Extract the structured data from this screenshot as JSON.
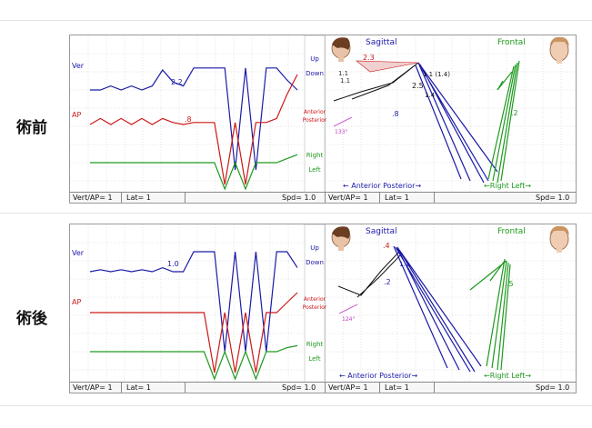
{
  "labels": {
    "before": "術前",
    "after": "術後"
  },
  "colors": {
    "vertical": "#1a1aa8",
    "ap": "#cc1818",
    "lateral": "#1e9a1e",
    "magenta": "#c040c0",
    "grid": "#c8c8c8"
  },
  "panels": [
    {
      "id": "before",
      "trace_labels": {
        "vertical": "Ver",
        "ap": "AP",
        "lateral": "Lat"
      },
      "direction_labels": {
        "up": "Up",
        "down": "Down",
        "anterior": "Anterior",
        "posterior": "Posterior",
        "right": "Right",
        "left": "Left"
      },
      "marker_values": {
        "vertical": "2.2",
        "ap": ".8"
      },
      "sagittal": {
        "title": "Sagittal",
        "axis_label": "← Anterior  Posterior→",
        "values": [
          "2.3",
          "1.1",
          "1.1 (1.4)",
          "2.5",
          "1.4",
          ".8",
          "1.1"
        ],
        "angle": "133°"
      },
      "frontal": {
        "title": "Frontal",
        "axis_label": "←Right   Left→",
        "values": [
          ".2"
        ]
      },
      "status": {
        "vert_ap": "Vert/AP= 1",
        "lat": "Lat= 1",
        "spd_left": "Spd= 1.0",
        "vert_ap_right": "Vert/AP= 1",
        "lat_right": "Lat= 1",
        "spd_right": "Spd= 1.0"
      },
      "icons": [
        "head-side-icon",
        "head-front-icon"
      ]
    },
    {
      "id": "after",
      "trace_labels": {
        "vertical": "Ver",
        "ap": "AP",
        "lateral": "Lat"
      },
      "direction_labels": {
        "up": "Up",
        "down": "Down",
        "anterior": "Anterior",
        "posterior": "Posterior",
        "right": "Right",
        "left": "Left"
      },
      "marker_values": {
        "vertical": "1.0"
      },
      "sagittal": {
        "title": "Sagittal",
        "axis_label": "← Anterior  Posterior→",
        "values": [
          ".4",
          "1.1",
          ".2"
        ],
        "angle": "124°"
      },
      "frontal": {
        "title": "Frontal",
        "axis_label": "←Right   Left→",
        "values": [
          ".5"
        ]
      },
      "status": {
        "vert_ap": "Vert/AP= 1",
        "lat": "Lat= 1",
        "spd_left": "Spd= 1.0",
        "vert_ap_right": "Vert/AP= 1",
        "lat_right": "Lat= 1",
        "spd_right": "Spd= 1.0"
      },
      "icons": [
        "head-side-icon",
        "head-front-icon"
      ]
    }
  ],
  "chart_data": [
    {
      "type": "line",
      "panel": "before",
      "series": [
        {
          "name": "Ver",
          "values": [
            0.0,
            0.0,
            0.2,
            0.0,
            0.2,
            0.0,
            0.2,
            1.0,
            0.4,
            0.2,
            1.1,
            1.1,
            1.1,
            1.1,
            -4.0,
            1.1,
            -4.0,
            1.1,
            1.1,
            0.5,
            0.0
          ]
        },
        {
          "name": "AP",
          "values": [
            0.0,
            0.3,
            0.0,
            0.3,
            0.0,
            0.3,
            0.0,
            0.3,
            0.1,
            0.0,
            0.1,
            0.1,
            0.1,
            -3.0,
            0.1,
            -3.0,
            0.1,
            0.1,
            0.3,
            1.5,
            2.5
          ]
        },
        {
          "name": "Lat",
          "values": [
            0.0,
            0.0,
            0.0,
            0.0,
            0.0,
            0.0,
            0.0,
            0.0,
            0.0,
            0.0,
            0.0,
            0.0,
            0.0,
            -1.5,
            0.0,
            -1.5,
            0.0,
            0.0,
            0.0,
            0.2,
            0.4
          ]
        }
      ]
    },
    {
      "type": "line",
      "panel": "after",
      "series": [
        {
          "name": "Ver",
          "values": [
            0.0,
            0.1,
            0.0,
            0.1,
            0.0,
            0.1,
            0.0,
            0.2,
            0.0,
            0.0,
            1.0,
            1.0,
            1.0,
            -4.0,
            1.0,
            -4.0,
            1.0,
            -4.0,
            1.0,
            1.0,
            0.2
          ]
        },
        {
          "name": "AP",
          "values": [
            0.0,
            0.0,
            0.0,
            0.0,
            0.0,
            0.0,
            0.0,
            0.0,
            0.0,
            0.0,
            0.0,
            0.0,
            -3.0,
            0.0,
            -3.0,
            0.0,
            -3.0,
            0.0,
            0.0,
            0.5,
            1.0
          ]
        },
        {
          "name": "Lat",
          "values": [
            0.0,
            0.0,
            0.0,
            0.0,
            0.0,
            0.0,
            0.0,
            0.0,
            0.0,
            0.0,
            0.0,
            0.0,
            -1.5,
            0.0,
            -1.5,
            0.0,
            -1.5,
            0.0,
            0.0,
            0.2,
            0.3
          ]
        }
      ]
    }
  ]
}
